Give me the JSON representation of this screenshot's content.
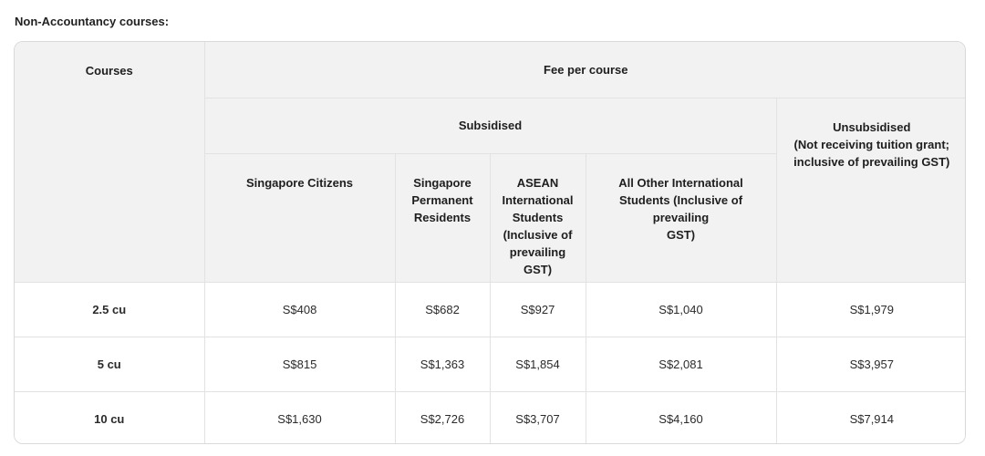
{
  "section_heading": "Non-Accountancy courses:",
  "headers": {
    "courses": "Courses",
    "fee_per_course": "Fee per course",
    "subsidised": "Subsidised",
    "unsubsidised_line1": "Unsubsidised",
    "unsubsidised_line2": "(Not receiving tuition grant;",
    "unsubsidised_line3": "inclusive of prevailing GST)",
    "singapore_citizens": "Singapore Citizens",
    "singapore_pr_line1": "Singapore",
    "singapore_pr_line2": "Permanent",
    "singapore_pr_line3": "Residents",
    "asean_line1": "ASEAN",
    "asean_line2": "International",
    "asean_line3": "Students",
    "asean_line4": "(Inclusive of",
    "asean_line5": "prevailing GST)",
    "other_intl_line1": "All Other International",
    "other_intl_line2": "Students (Inclusive of prevailing",
    "other_intl_line3": "GST)"
  },
  "rows": [
    {
      "course": "2.5 cu",
      "sc": "S$408",
      "pr": "S$682",
      "asean": "S$927",
      "other": "S$1,040",
      "unsub": "S$1,979"
    },
    {
      "course": "5 cu",
      "sc": "S$815",
      "pr": "S$1,363",
      "asean": "S$1,854",
      "other": "S$2,081",
      "unsub": "S$3,957"
    },
    {
      "course": "10 cu",
      "sc": "S$1,630",
      "pr": "S$2,726",
      "asean": "S$3,707",
      "other": "S$4,160",
      "unsub": "S$7,914"
    }
  ]
}
